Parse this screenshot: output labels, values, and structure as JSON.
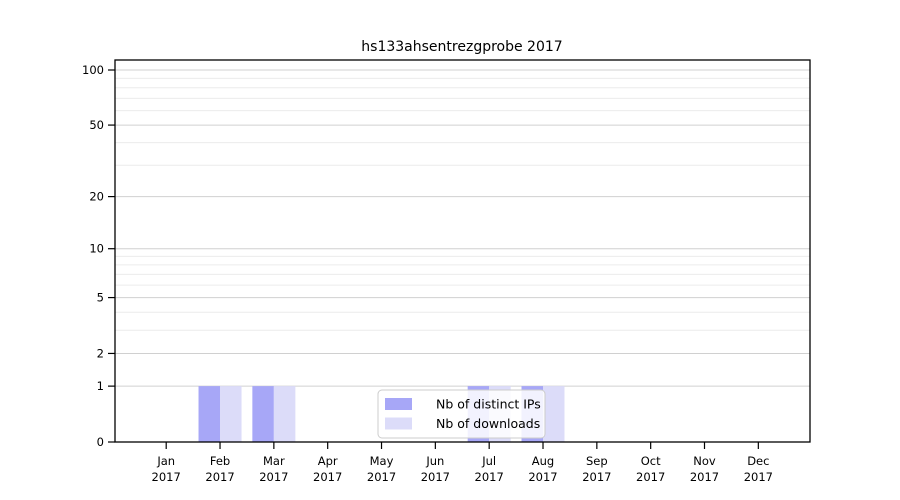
{
  "chart_data": {
    "type": "bar",
    "title": "hs133ahsentrezgprobe 2017",
    "categories": [
      "Jan",
      "Feb",
      "Mar",
      "Apr",
      "May",
      "Jun",
      "Jul",
      "Aug",
      "Sep",
      "Oct",
      "Nov",
      "Dec"
    ],
    "year_label": "2017",
    "series": [
      {
        "name": "Nb of distinct IPs",
        "color": "#a7a7f7",
        "values": [
          0,
          1,
          1,
          0,
          0,
          0,
          1,
          1,
          0,
          0,
          0,
          0
        ]
      },
      {
        "name": "Nb of downloads",
        "color": "#dcdcf9",
        "values": [
          0,
          1,
          1,
          0,
          0,
          0,
          1,
          1,
          0,
          0,
          0,
          0
        ]
      }
    ],
    "y_scale": "log1p",
    "y_ticks": [
      0,
      1,
      2,
      5,
      10,
      20,
      50,
      100
    ],
    "y_minor_gridlines": [
      3,
      4,
      6,
      7,
      8,
      9,
      30,
      40,
      60,
      70,
      80,
      90
    ],
    "ylim": [
      0,
      100
    ],
    "grid": true,
    "legend_position": "bottom-center",
    "colors": {
      "major_grid": "#d0d0d0",
      "minor_grid": "#ececec",
      "axis": "#000000",
      "legend_border": "#cccccc",
      "legend_background": "#ffffff"
    }
  }
}
